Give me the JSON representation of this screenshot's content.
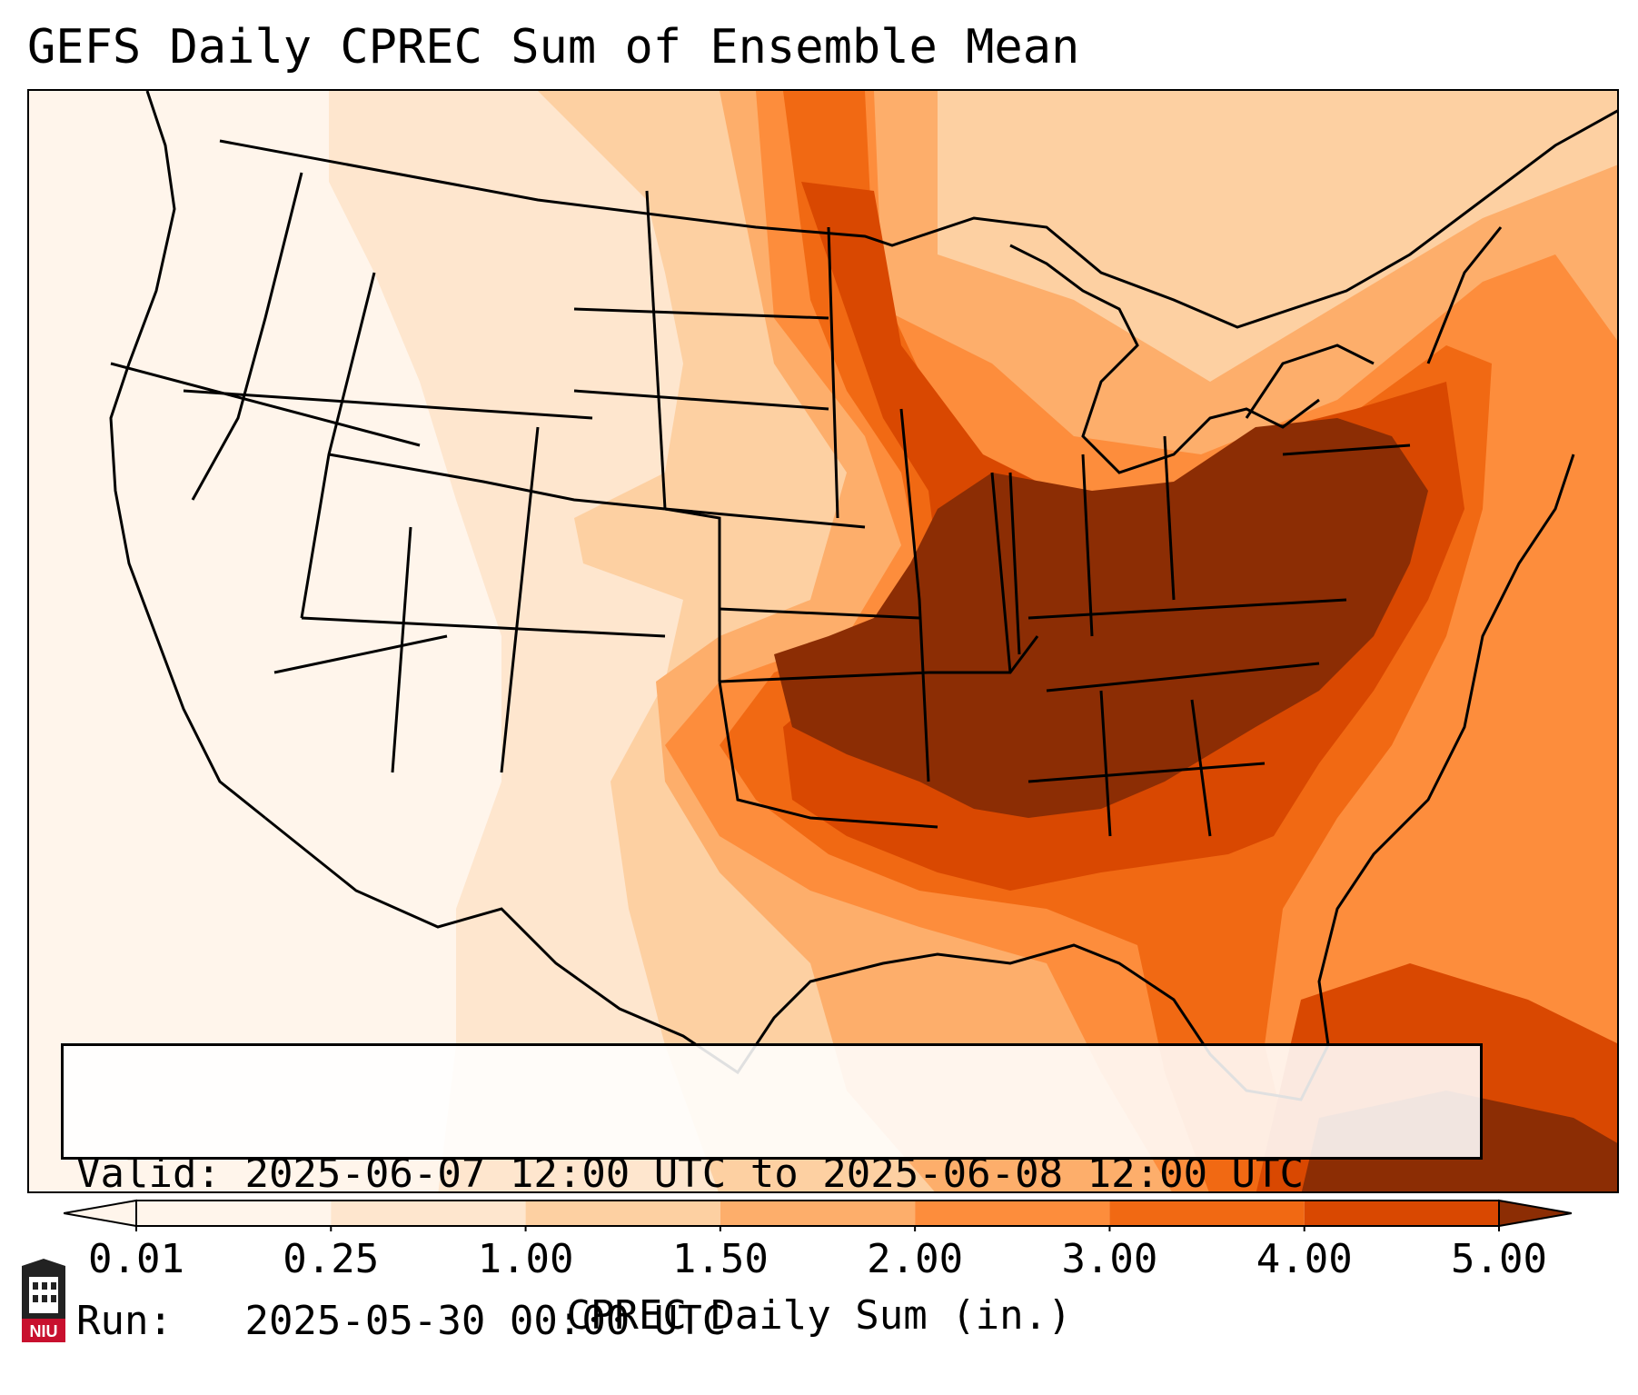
{
  "title": "GEFS Daily CPREC Sum of Ensemble Mean",
  "info_box": {
    "valid_label": "Valid:",
    "valid_value": "2025-06-07 12:00 UTC to 2025-06-08 12:00 UTC",
    "run_label": "Run:",
    "run_value": "2025-05-30 00:00 UTC"
  },
  "colorbar": {
    "title": "CPREC Daily Sum (in.)",
    "ticks": [
      "0.01",
      "0.25",
      "1.00",
      "1.50",
      "2.00",
      "3.00",
      "4.00",
      "5.00"
    ],
    "colors": [
      "#fff5eb",
      "#fee6ce",
      "#fdd0a2",
      "#fdae6b",
      "#fd8d3c",
      "#f16913",
      "#d94801",
      "#8c2d04"
    ],
    "extend": "both"
  },
  "map": {
    "projection": "Lambert conformal, CONUS",
    "variable": "convective precipitation daily sum",
    "max_region_color": "#8c2d04"
  },
  "logo": {
    "text": "NIU"
  }
}
